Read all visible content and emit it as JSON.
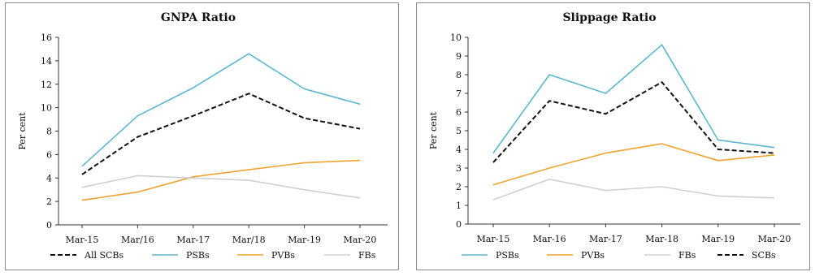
{
  "chart_data": [
    {
      "type": "line",
      "title": "GNPA Ratio",
      "xlabel": "",
      "ylabel": "Per cent",
      "categories": [
        "Mar-15",
        "Mar/16",
        "Mar-17",
        "Mar/18",
        "Mar-19",
        "Mar-20"
      ],
      "ylim": [
        0,
        16
      ],
      "yticks": [
        "0",
        "2",
        "4",
        "6",
        "8",
        "10",
        "12",
        "14",
        "16"
      ],
      "grid": false,
      "legend_position": "bottom",
      "series": [
        {
          "name": "All SCBs",
          "color": "#111111",
          "dash": true,
          "values": [
            4.3,
            7.5,
            9.3,
            11.2,
            9.1,
            8.2
          ]
        },
        {
          "name": "PSBs",
          "color": "#5bb7d1",
          "dash": false,
          "values": [
            5.0,
            9.3,
            11.7,
            14.6,
            11.6,
            10.3
          ]
        },
        {
          "name": "PVBs",
          "color": "#f0a32f",
          "dash": false,
          "values": [
            2.1,
            2.8,
            4.1,
            4.7,
            5.3,
            5.5
          ]
        },
        {
          "name": "FBs",
          "color": "#d0d0d0",
          "dash": false,
          "values": [
            3.2,
            4.2,
            4.0,
            3.8,
            3.0,
            2.3
          ]
        }
      ]
    },
    {
      "type": "line",
      "title": "Slippage Ratio",
      "xlabel": "",
      "ylabel": "Per cent",
      "categories": [
        "Mar-15",
        "Mar-16",
        "Mar-17",
        "Mar-18",
        "Mar-19",
        "Mar-20"
      ],
      "ylim": [
        0,
        10
      ],
      "yticks": [
        "0",
        "1",
        "2",
        "3",
        "4",
        "5",
        "6",
        "7",
        "8",
        "9",
        "10"
      ],
      "grid": false,
      "legend_position": "bottom",
      "series": [
        {
          "name": "PSBs",
          "color": "#5bb7d1",
          "dash": false,
          "values": [
            3.8,
            8.0,
            7.0,
            9.6,
            4.5,
            4.1
          ]
        },
        {
          "name": "PVBs",
          "color": "#f0a32f",
          "dash": false,
          "values": [
            2.1,
            3.0,
            3.8,
            4.3,
            3.4,
            3.7
          ]
        },
        {
          "name": "FBs",
          "color": "#d0d0d0",
          "dash": false,
          "values": [
            1.3,
            2.4,
            1.8,
            2.0,
            1.5,
            1.4
          ]
        },
        {
          "name": "SCBs",
          "color": "#111111",
          "dash": true,
          "values": [
            3.3,
            6.6,
            5.9,
            7.6,
            4.0,
            3.8
          ]
        }
      ]
    }
  ]
}
